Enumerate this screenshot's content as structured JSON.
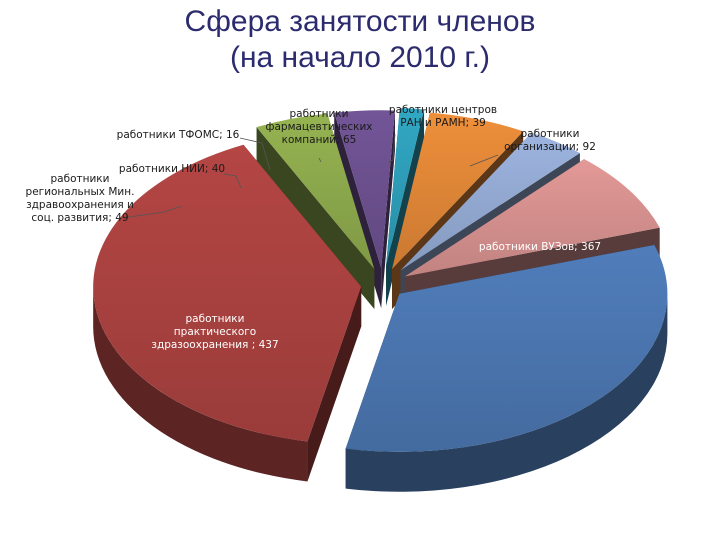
{
  "title_lines": [
    "Сфера занятости членов",
    "(на начало 2010 г.)"
  ],
  "chart_data": {
    "type": "pie",
    "exploded": true,
    "three_d": true,
    "title": "Сфера занятости членов (на начало 2010 г.)",
    "slices": [
      {
        "label_lines": [
          "работники ВУЗов; 367"
        ],
        "category": "работники ВУЗов",
        "value": 367,
        "color": "#4a74ad",
        "label_color": "light"
      },
      {
        "label_lines": [
          "работники",
          "практического",
          "здразоохранения ; 437"
        ],
        "category": "работники практического здразоохранения",
        "value": 437,
        "color": "#a7413f",
        "label_color": "light"
      },
      {
        "label_lines": [
          "работники",
          "региональных Мин.",
          "здравоохранения и",
          "соц. развития; 49"
        ],
        "category": "работники региональных Мин. здравоохранения и соц. развития",
        "value": 49,
        "color": "#8aa64b",
        "label_color": "dark"
      },
      {
        "label_lines": [
          "работники НИИ; 40"
        ],
        "category": "работники НИИ",
        "value": 40,
        "color": "#6a4f8c",
        "label_color": "dark"
      },
      {
        "label_lines": [
          "работники ТФОМС; 16"
        ],
        "category": "работники ТФОМС",
        "value": 16,
        "color": "#2d9bb5",
        "label_color": "dark"
      },
      {
        "label_lines": [
          "работники",
          "фармацевтических",
          "компаний; 65"
        ],
        "category": "работники фармацевтических компаний",
        "value": 65,
        "color": "#dc8436",
        "label_color": "dark"
      },
      {
        "label_lines": [
          "работники центров",
          "РАН и РАМН; 39"
        ],
        "category": "работники центров РАН и РАМН",
        "value": 39,
        "color": "#91a7cf",
        "label_color": "dark"
      },
      {
        "label_lines": [
          "работники",
          "организации; 92"
        ],
        "category": "работники организации",
        "value": 92,
        "color": "#d28e8c",
        "label_color": "dark"
      }
    ]
  }
}
